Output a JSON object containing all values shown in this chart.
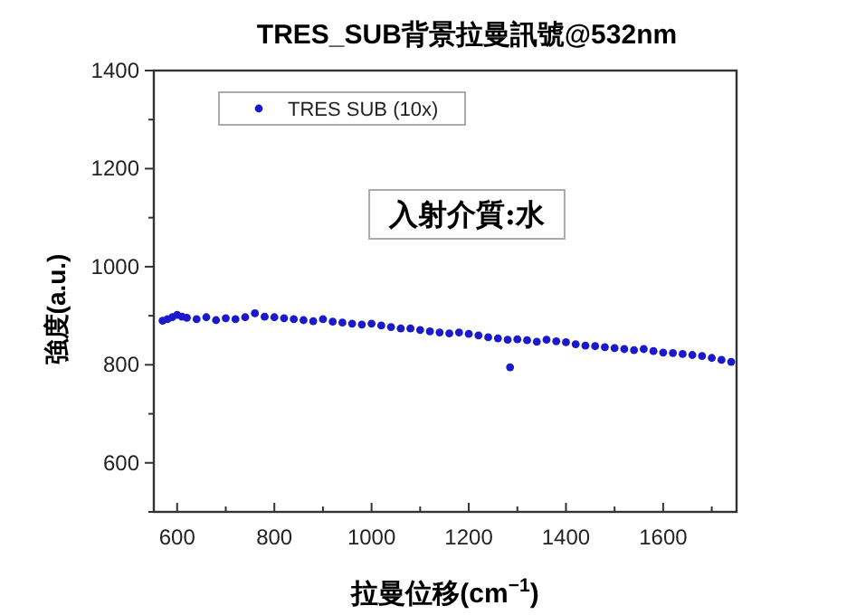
{
  "chart_data": {
    "type": "scatter",
    "title": "TRES_SUB背景拉曼訊號@532nm",
    "xlabel": "拉曼位移(cm$^{−1}$)",
    "ylabel": "強度(a.u.)",
    "xlim": [
      552,
      1751
    ],
    "ylim": [
      500,
      1400
    ],
    "xticks": [
      600,
      {
        "value": 700,
        "label": null
      },
      800,
      {
        "value": 900,
        "label": null
      },
      1000,
      {
        "value": 1100,
        "label": null
      },
      1200,
      {
        "value": 1300,
        "label": null
      },
      1400,
      {
        "value": 1500,
        "label": null
      },
      1600,
      {
        "value": 1700,
        "label": null
      }
    ],
    "yticks": [
      {
        "value": 500,
        "label": null
      },
      600,
      {
        "value": 700,
        "label": null
      },
      800,
      {
        "value": 900,
        "label": null
      },
      1000,
      {
        "value": 1100,
        "label": null
      },
      1200,
      {
        "value": 1300,
        "label": null
      },
      1400
    ],
    "legend": "top left",
    "marker": "circle",
    "grid": false,
    "annotations": [
      "入射介質:水"
    ],
    "series": [
      {
        "name": "TRES SUB (10x)",
        "color": "#1a1acc",
        "x": [
          570,
          580,
          590,
          600,
          610,
          620,
          640,
          660,
          680,
          700,
          720,
          740,
          760,
          780,
          800,
          820,
          840,
          860,
          880,
          900,
          920,
          940,
          960,
          980,
          1000,
          1020,
          1040,
          1060,
          1080,
          1100,
          1120,
          1140,
          1160,
          1180,
          1200,
          1220,
          1240,
          1260,
          1280,
          1285,
          1300,
          1320,
          1340,
          1360,
          1380,
          1400,
          1420,
          1440,
          1460,
          1480,
          1500,
          1520,
          1540,
          1560,
          1580,
          1600,
          1620,
          1640,
          1660,
          1680,
          1700,
          1720,
          1740
        ],
        "values": [
          890,
          893,
          897,
          902,
          898,
          896,
          893,
          897,
          891,
          895,
          893,
          897,
          905,
          898,
          897,
          895,
          893,
          891,
          889,
          893,
          888,
          886,
          884,
          882,
          884,
          880,
          877,
          874,
          874,
          871,
          868,
          866,
          864,
          866,
          863,
          860,
          856,
          854,
          851,
          795,
          852,
          850,
          847,
          851,
          848,
          846,
          842,
          839,
          838,
          836,
          834,
          832,
          830,
          832,
          828,
          825,
          824,
          822,
          820,
          818,
          814,
          810,
          806
        ]
      }
    ]
  }
}
